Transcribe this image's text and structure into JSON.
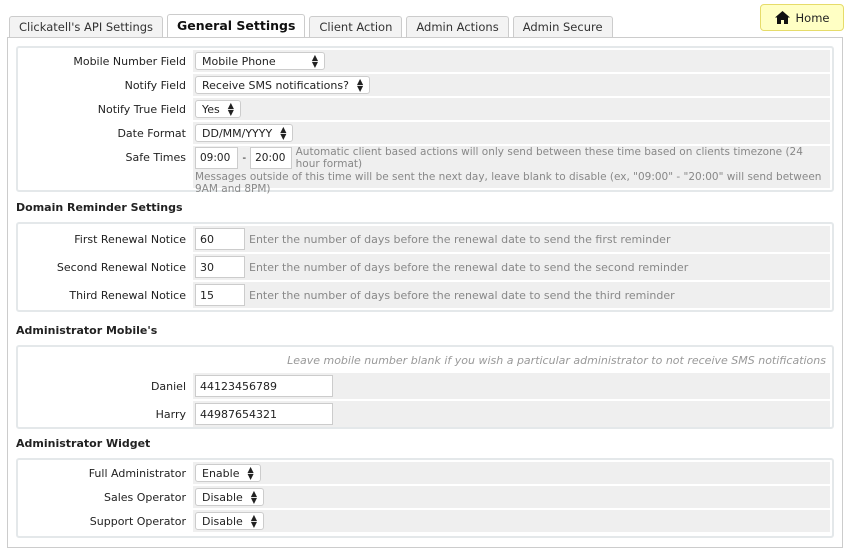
{
  "tabs": [
    "Clickatell's API Settings",
    "General Settings",
    "Client Action",
    "Admin Actions",
    "Admin Secure"
  ],
  "active_tab": "General Settings",
  "home_label": "Home",
  "general": {
    "mobile_label": "Mobile Number Field",
    "mobile_value": "Mobile Phone",
    "notify_label": "Notify Field",
    "notify_value": "Receive SMS notifications?",
    "notify_true_label": "Notify True Field",
    "notify_true_value": "Yes",
    "date_label": "Date Format",
    "date_value": "DD/MM/YYYY",
    "safe_label": "Safe Times",
    "safe_from": "09:00",
    "safe_sep": "-",
    "safe_to": "20:00",
    "safe_help1": "Automatic client based actions will only send between these time based on clients timezone (24 hour format)",
    "safe_help2": "Messages outside of this time will be sent the next day, leave blank to disable (ex, \"09:00\" - \"20:00\" will send between 9AM and 8PM)"
  },
  "domain": {
    "heading": "Domain Reminder Settings",
    "rows": [
      {
        "label": "First Renewal Notice",
        "value": "60",
        "help": "Enter the number of days before the renewal date to send the first reminder"
      },
      {
        "label": "Second Renewal Notice",
        "value": "30",
        "help": "Enter the number of days before the renewal date to send the second reminder"
      },
      {
        "label": "Third Renewal Notice",
        "value": "15",
        "help": "Enter the number of days before the renewal date to send the third reminder"
      }
    ]
  },
  "mobiles": {
    "heading": "Administrator Mobile's",
    "note": "Leave mobile number blank if you wish a particular administrator to not receive SMS notifications",
    "rows": [
      {
        "label": "Daniel",
        "value": "44123456789"
      },
      {
        "label": "Harry",
        "value": "44987654321"
      }
    ]
  },
  "widget": {
    "heading": "Administrator Widget",
    "rows": [
      {
        "label": "Full Administrator",
        "value": "Enable"
      },
      {
        "label": "Sales Operator",
        "value": "Disable"
      },
      {
        "label": "Support Operator",
        "value": "Disable"
      }
    ]
  }
}
